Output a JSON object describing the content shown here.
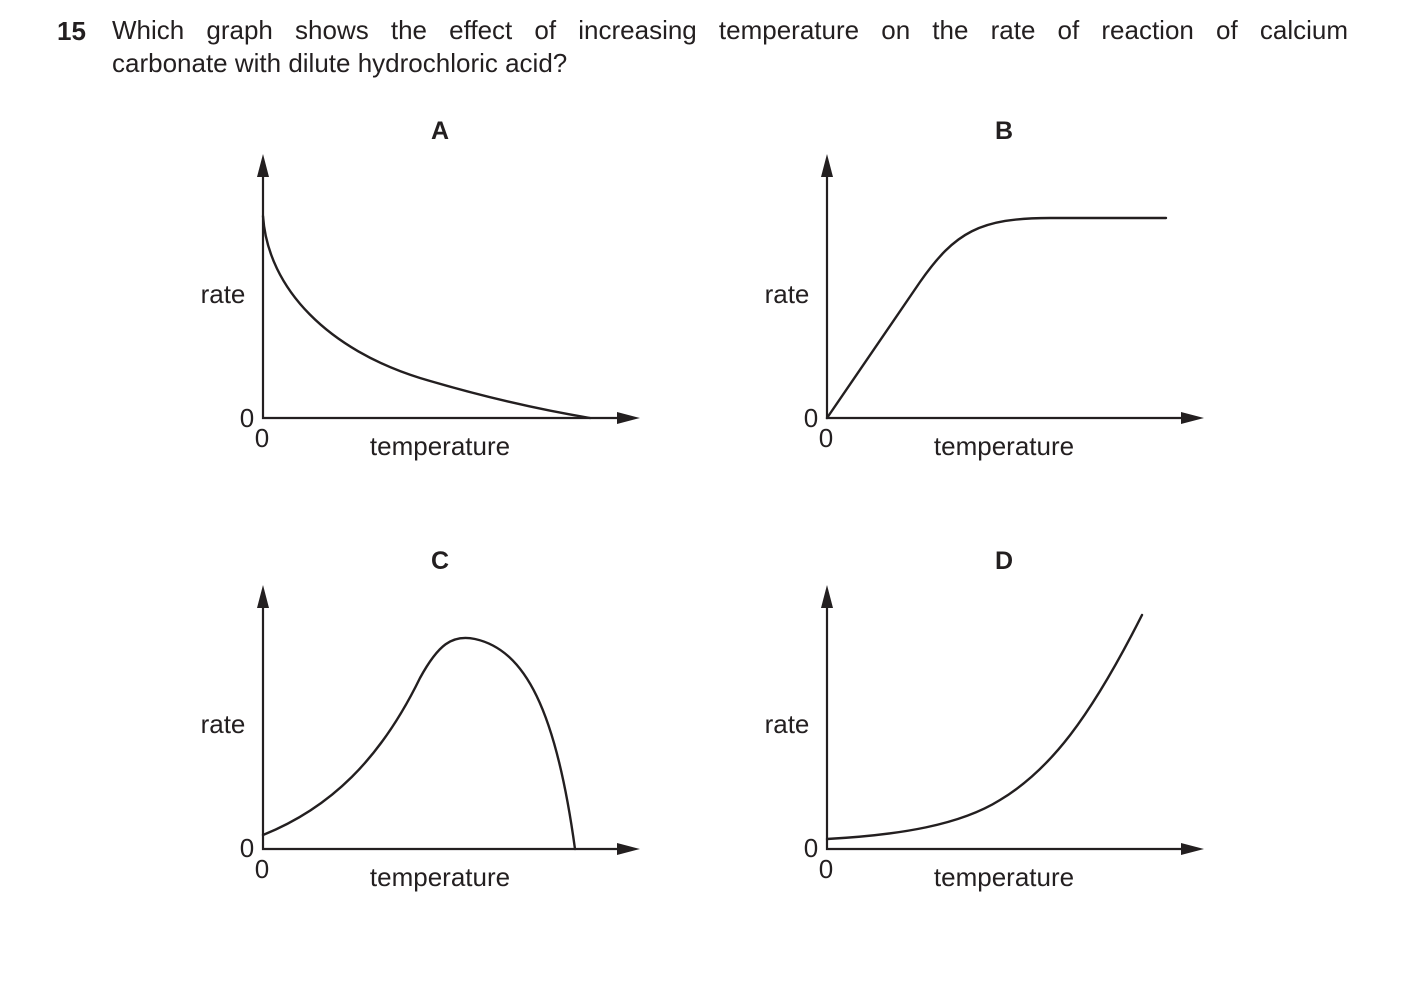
{
  "question": {
    "number": "15",
    "line1": "Which graph shows the effect of increasing temperature on the rate of reaction of calcium",
    "line2": "carbonate with dilute hydrochloric acid?"
  },
  "graphs": [
    {
      "letter": "A",
      "ylabel": "rate",
      "xlabel": "temperature",
      "y_origin": "0",
      "x_origin": "0"
    },
    {
      "letter": "B",
      "ylabel": "rate",
      "xlabel": "temperature",
      "y_origin": "0",
      "x_origin": "0"
    },
    {
      "letter": "C",
      "ylabel": "rate",
      "xlabel": "temperature",
      "y_origin": "0",
      "x_origin": "0"
    },
    {
      "letter": "D",
      "ylabel": "rate",
      "xlabel": "temperature",
      "y_origin": "0",
      "x_origin": "0"
    }
  ],
  "chart_data": [
    {
      "type": "line",
      "title": "A",
      "xlabel": "temperature",
      "ylabel": "rate",
      "x": [
        0,
        0.05,
        0.15,
        0.3,
        0.5,
        0.7,
        0.9,
        1.0
      ],
      "values": [
        0.67,
        0.5,
        0.36,
        0.23,
        0.12,
        0.05,
        0.01,
        0
      ]
    },
    {
      "type": "line",
      "title": "B",
      "xlabel": "temperature",
      "ylabel": "rate",
      "x": [
        0,
        0.1,
        0.2,
        0.3,
        0.4,
        0.5,
        0.7,
        1.0
      ],
      "values": [
        0,
        0.22,
        0.42,
        0.58,
        0.66,
        0.67,
        0.67,
        0.67
      ]
    },
    {
      "type": "line",
      "title": "C",
      "xlabel": "temperature",
      "ylabel": "rate",
      "x": [
        0,
        0.15,
        0.3,
        0.45,
        0.55,
        0.65,
        0.75,
        0.82,
        0.89
      ],
      "values": [
        0.04,
        0.15,
        0.36,
        0.62,
        0.67,
        0.62,
        0.5,
        0.31,
        0
      ]
    },
    {
      "type": "line",
      "title": "D",
      "xlabel": "temperature",
      "ylabel": "rate",
      "x": [
        0,
        0.2,
        0.4,
        0.55,
        0.7,
        0.8,
        0.87
      ],
      "values": [
        0.03,
        0.05,
        0.09,
        0.17,
        0.35,
        0.55,
        0.71
      ]
    }
  ]
}
